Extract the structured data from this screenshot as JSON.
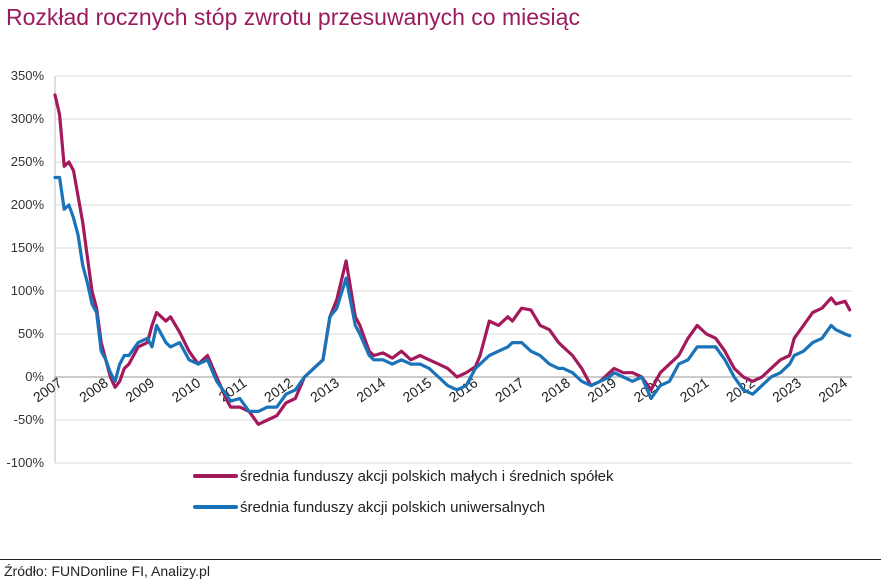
{
  "title": "Rozkład rocznych stóp zwrotu przesuwanych co miesiąc",
  "source": "Źródło: FUNDonline FI, Analizy.pl",
  "chart_data": {
    "type": "line",
    "title": "Rozkład rocznych stóp zwrotu przesuwanych co miesiąc",
    "xlabel": "",
    "ylabel": "",
    "ylim": [
      -100,
      350
    ],
    "y_tick_labels": [
      "350%",
      "300%",
      "250%",
      "200%",
      "150%",
      "100%",
      "50%",
      "0%",
      "-50%",
      "-100%"
    ],
    "y_tick_values": [
      350,
      300,
      250,
      200,
      150,
      100,
      50,
      0,
      -50,
      -100
    ],
    "x_tick_labels": [
      "2007",
      "2008",
      "2009",
      "2010",
      "2011",
      "2012",
      "2013",
      "2014",
      "2015",
      "2016",
      "2017",
      "2018",
      "2019",
      "2020",
      "2021",
      "2022",
      "2023",
      "2024"
    ],
    "grid": "horizontal",
    "legend_position": "bottom",
    "series": [
      {
        "name": "średnia funduszy akcji polskich małych i średnich spółek",
        "color": "#a3195b",
        "x": [
          2007.0,
          2007.1,
          2007.2,
          2007.3,
          2007.4,
          2007.5,
          2007.6,
          2007.7,
          2007.8,
          2007.9,
          2008.0,
          2008.1,
          2008.2,
          2008.3,
          2008.4,
          2008.5,
          2008.6,
          2008.8,
          2009.0,
          2009.1,
          2009.2,
          2009.4,
          2009.5,
          2009.7,
          2009.9,
          2010.1,
          2010.3,
          2010.5,
          2010.7,
          2010.8,
          2011.0,
          2011.2,
          2011.4,
          2011.6,
          2011.8,
          2012.0,
          2012.2,
          2012.4,
          2012.6,
          2012.8,
          2012.95,
          2013.1,
          2013.3,
          2013.5,
          2013.6,
          2013.8,
          2013.9,
          2014.1,
          2014.3,
          2014.5,
          2014.7,
          2014.9,
          2015.1,
          2015.3,
          2015.5,
          2015.7,
          2015.9,
          2016.1,
          2016.2,
          2016.4,
          2016.6,
          2016.8,
          2016.9,
          2017.1,
          2017.3,
          2017.5,
          2017.7,
          2017.9,
          2018.0,
          2018.2,
          2018.4,
          2018.6,
          2018.8,
          2019.0,
          2019.1,
          2019.3,
          2019.5,
          2019.7,
          2019.9,
          2020.1,
          2020.3,
          2020.5,
          2020.7,
          2020.9,
          2021.1,
          2021.3,
          2021.5,
          2021.7,
          2021.9,
          2022.1,
          2022.3,
          2022.5,
          2022.7,
          2022.9,
          2023.0,
          2023.2,
          2023.4,
          2023.6,
          2023.8,
          2023.9,
          2024.1,
          2024.2
        ],
        "values": [
          328,
          305,
          245,
          250,
          240,
          210,
          180,
          140,
          100,
          80,
          40,
          20,
          0,
          -12,
          -5,
          10,
          15,
          35,
          40,
          60,
          75,
          65,
          70,
          52,
          30,
          15,
          25,
          0,
          -25,
          -35,
          -35,
          -40,
          -55,
          -50,
          -45,
          -30,
          -25,
          0,
          10,
          20,
          70,
          90,
          135,
          70,
          60,
          30,
          25,
          28,
          22,
          30,
          20,
          25,
          20,
          15,
          10,
          0,
          5,
          12,
          25,
          65,
          60,
          70,
          65,
          80,
          78,
          60,
          55,
          40,
          35,
          25,
          10,
          -10,
          -5,
          5,
          10,
          5,
          5,
          0,
          -15,
          5,
          15,
          25,
          45,
          60,
          50,
          45,
          30,
          10,
          0,
          -5,
          0,
          10,
          20,
          25,
          45,
          60,
          75,
          80,
          92,
          85,
          88,
          78
        ]
      },
      {
        "name": "średnia funduszy akcji polskich uniwersalnych",
        "color": "#1a73b8",
        "x": [
          2007.0,
          2007.1,
          2007.2,
          2007.3,
          2007.4,
          2007.5,
          2007.6,
          2007.7,
          2007.8,
          2007.9,
          2008.0,
          2008.1,
          2008.2,
          2008.3,
          2008.4,
          2008.5,
          2008.6,
          2008.8,
          2009.0,
          2009.1,
          2009.2,
          2009.4,
          2009.5,
          2009.7,
          2009.9,
          2010.1,
          2010.3,
          2010.5,
          2010.7,
          2010.8,
          2011.0,
          2011.2,
          2011.4,
          2011.6,
          2011.8,
          2012.0,
          2012.2,
          2012.4,
          2012.6,
          2012.8,
          2012.95,
          2013.1,
          2013.3,
          2013.5,
          2013.6,
          2013.8,
          2013.9,
          2014.1,
          2014.3,
          2014.5,
          2014.7,
          2014.9,
          2015.1,
          2015.3,
          2015.5,
          2015.7,
          2015.9,
          2016.1,
          2016.2,
          2016.4,
          2016.6,
          2016.8,
          2016.9,
          2017.1,
          2017.3,
          2017.5,
          2017.7,
          2017.9,
          2018.0,
          2018.2,
          2018.4,
          2018.6,
          2018.8,
          2019.0,
          2019.1,
          2019.3,
          2019.5,
          2019.7,
          2019.9,
          2020.1,
          2020.3,
          2020.5,
          2020.7,
          2020.9,
          2021.1,
          2021.3,
          2021.5,
          2021.7,
          2021.9,
          2022.1,
          2022.3,
          2022.5,
          2022.7,
          2022.9,
          2023.0,
          2023.2,
          2023.4,
          2023.6,
          2023.8,
          2023.9,
          2024.1,
          2024.2
        ],
        "values": [
          232,
          232,
          195,
          200,
          185,
          165,
          130,
          110,
          85,
          75,
          30,
          20,
          5,
          -5,
          15,
          25,
          25,
          40,
          45,
          35,
          60,
          40,
          35,
          40,
          20,
          15,
          20,
          -5,
          -20,
          -28,
          -25,
          -40,
          -40,
          -35,
          -35,
          -20,
          -15,
          0,
          10,
          20,
          70,
          80,
          115,
          60,
          50,
          25,
          20,
          20,
          15,
          20,
          15,
          15,
          10,
          0,
          -10,
          -15,
          -10,
          10,
          15,
          25,
          30,
          35,
          40,
          40,
          30,
          25,
          15,
          10,
          10,
          5,
          -5,
          -10,
          -5,
          0,
          5,
          0,
          -5,
          0,
          -25,
          -10,
          -5,
          15,
          20,
          35,
          35,
          35,
          20,
          0,
          -15,
          -20,
          -10,
          0,
          5,
          15,
          25,
          30,
          40,
          45,
          60,
          55,
          50,
          48
        ]
      }
    ]
  }
}
